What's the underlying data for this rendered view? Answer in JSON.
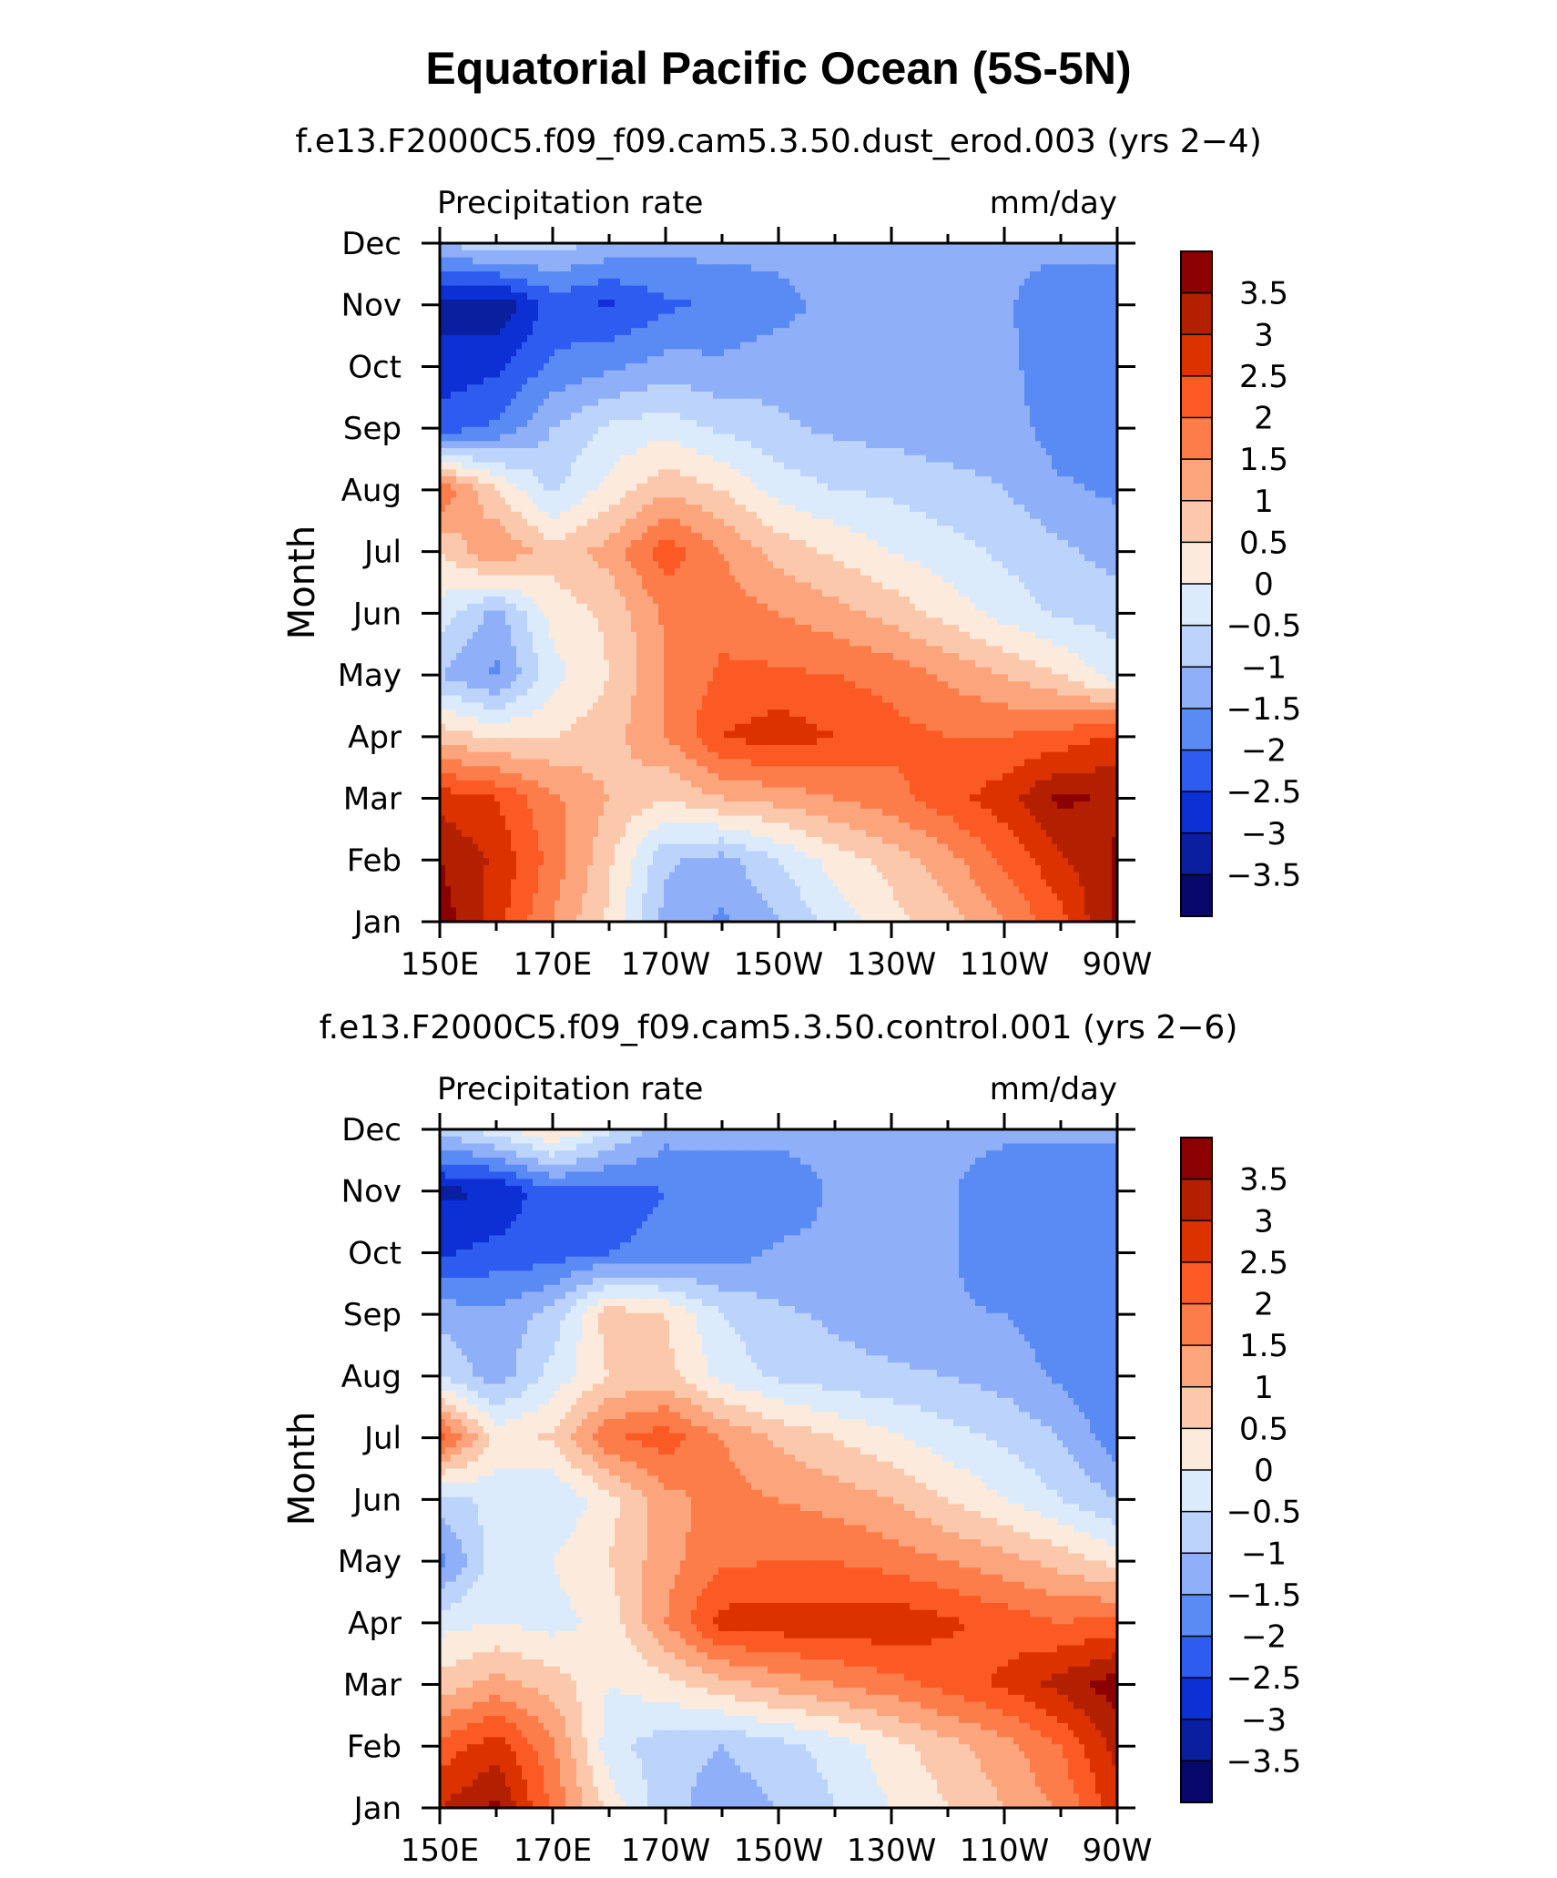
{
  "title": "Equatorial Pacific Ocean (5S-5N)",
  "chart_data": [
    {
      "type": "heatmap",
      "subtitle": "f.e13.F2000C5.f09_f09.cam5.3.50.dust_erod.003 (yrs 2−4)",
      "left_label": "Precipitation  rate",
      "right_label": "mm/day",
      "ylabel": "Month",
      "xlabel": "",
      "x_tick_labels": [
        "150E",
        "170E",
        "170W",
        "150W",
        "130W",
        "110W",
        "90W"
      ],
      "y_tick_labels": [
        "Jan",
        "Feb",
        "Mar",
        "Apr",
        "May",
        "Jun",
        "Jul",
        "Aug",
        "Sep",
        "Oct",
        "Nov",
        "Dec"
      ],
      "x": [
        150,
        160,
        170,
        180,
        190,
        200,
        210,
        220,
        230,
        240,
        250,
        260,
        270
      ],
      "y": [
        "Jan",
        "Feb",
        "Mar",
        "Apr",
        "May",
        "Jun",
        "Jul",
        "Aug",
        "Sep",
        "Oct",
        "Nov",
        "Dec"
      ],
      "xlim": [
        150,
        270
      ],
      "colorbar_labels": [
        "3.5",
        "3",
        "2.5",
        "2",
        "1.5",
        "1",
        "0.5",
        "0",
        "−0.5",
        "−1",
        "−1.5",
        "−2",
        "−2.5",
        "−3",
        "−3.5"
      ],
      "levels": [
        3.5,
        3,
        2.5,
        2,
        1.5,
        1,
        0.5,
        0,
        -0.5,
        -1,
        -1.5,
        -2,
        -2.5,
        -3,
        -3.5
      ],
      "colors": [
        "#8b0000",
        "#b22000",
        "#dc3200",
        "#fc5a24",
        "#fc7d4a",
        "#fca47c",
        "#fcc8ac",
        "#fcebdc",
        "#dcebfc",
        "#bcd4fc",
        "#8fb0f8",
        "#5a8af4",
        "#2e5cf0",
        "#0c30d4",
        "#0a1ea0",
        "#08086c"
      ],
      "values": [
        [
          3.8,
          2.7,
          1.5,
          0.4,
          -1.2,
          -1.6,
          -1.0,
          -0.3,
          0.3,
          0.8,
          1.5,
          2.3,
          3.7
        ],
        [
          3.5,
          2.9,
          1.8,
          0.6,
          -0.9,
          -1.2,
          -0.5,
          0.2,
          0.7,
          1.3,
          2.1,
          2.9,
          3.6
        ],
        [
          2.8,
          2.5,
          1.6,
          1.0,
          0.5,
          1.0,
          1.2,
          1.5,
          1.8,
          2.3,
          2.8,
          3.6,
          3.4
        ],
        [
          0.8,
          0.4,
          0.5,
          0.8,
          1.5,
          2.5,
          2.8,
          2.5,
          2.2,
          2.0,
          2.0,
          2.2,
          2.6
        ],
        [
          -1.0,
          -1.6,
          -0.2,
          0.5,
          1.5,
          2.1,
          2.1,
          2.0,
          1.8,
          1.4,
          1.0,
          0.5,
          -0.3
        ],
        [
          -0.2,
          -1.2,
          0.2,
          0.6,
          1.6,
          1.8,
          1.5,
          1.2,
          0.8,
          0.3,
          -0.2,
          -0.6,
          -0.7
        ],
        [
          0.5,
          1.5,
          0.7,
          1.2,
          2.3,
          1.5,
          0.8,
          0.4,
          0.0,
          -0.3,
          -0.6,
          -0.9,
          -1.2
        ],
        [
          2.0,
          0.5,
          -0.6,
          0.2,
          0.9,
          0.5,
          -0.2,
          -0.5,
          -0.6,
          -0.8,
          -1.0,
          -1.4,
          -1.6
        ],
        [
          -2.3,
          -1.9,
          -1.0,
          -0.4,
          -0.2,
          -0.6,
          -0.9,
          -1.1,
          -1.2,
          -1.3,
          -1.2,
          -1.8,
          -1.8
        ],
        [
          -2.8,
          -2.6,
          -1.9,
          -1.6,
          -1.3,
          -1.4,
          -1.2,
          -1.3,
          -1.3,
          -1.4,
          -1.3,
          -2.0,
          -1.8
        ],
        [
          -3.2,
          -3.4,
          -2.3,
          -2.6,
          -2.1,
          -1.9,
          -1.7,
          -1.3,
          -1.3,
          -1.4,
          -1.4,
          -2.0,
          -1.8
        ],
        [
          -1.0,
          -0.6,
          -0.8,
          -1.1,
          -1.3,
          -1.3,
          -1.3,
          -1.3,
          -1.3,
          -1.3,
          -1.3,
          -1.3,
          -1.3
        ]
      ]
    },
    {
      "type": "heatmap",
      "subtitle": "f.e13.F2000C5.f09_f09.cam5.3.50.control.001 (yrs 2−6)",
      "left_label": "Precipitation  rate",
      "right_label": "mm/day",
      "ylabel": "Month",
      "xlabel": "",
      "x_tick_labels": [
        "150E",
        "170E",
        "170W",
        "150W",
        "130W",
        "110W",
        "90W"
      ],
      "y_tick_labels": [
        "Jan",
        "Feb",
        "Mar",
        "Apr",
        "May",
        "Jun",
        "Jul",
        "Aug",
        "Sep",
        "Oct",
        "Nov",
        "Dec"
      ],
      "x": [
        150,
        160,
        170,
        180,
        190,
        200,
        210,
        220,
        230,
        240,
        250,
        260,
        270
      ],
      "y": [
        "Jan",
        "Feb",
        "Mar",
        "Apr",
        "May",
        "Jun",
        "Jul",
        "Aug",
        "Sep",
        "Oct",
        "Nov",
        "Dec"
      ],
      "xlim": [
        150,
        270
      ],
      "colorbar_labels": [
        "3.5",
        "3",
        "2.5",
        "2",
        "1.5",
        "1",
        "0.5",
        "0",
        "−0.5",
        "−1",
        "−1.5",
        "−2",
        "−2.5",
        "−3",
        "−3.5"
      ],
      "levels": [
        3.5,
        3,
        2.5,
        2,
        1.5,
        1,
        0.5,
        0,
        -0.5,
        -1,
        -1.5,
        -2,
        -2.5,
        -3,
        -3.5
      ],
      "colors": [
        "#8b0000",
        "#b22000",
        "#dc3200",
        "#fc5a24",
        "#fc7d4a",
        "#fca47c",
        "#fcc8ac",
        "#fcebdc",
        "#dcebfc",
        "#bcd4fc",
        "#8fb0f8",
        "#5a8af4",
        "#2e5cf0",
        "#0c30d4",
        "#0a1ea0",
        "#08086c"
      ],
      "values": [
        [
          3.0,
          3.6,
          1.9,
          0.3,
          -0.8,
          -1.3,
          -1.0,
          -0.5,
          0.0,
          0.5,
          1.0,
          1.6,
          2.8
        ],
        [
          2.2,
          2.8,
          1.6,
          -0.3,
          -0.8,
          -1.0,
          -0.7,
          -0.3,
          0.3,
          0.8,
          1.3,
          2.0,
          3.2
        ],
        [
          0.7,
          1.2,
          0.8,
          0.0,
          0.3,
          0.8,
          1.2,
          1.5,
          1.8,
          2.2,
          2.6,
          3.2,
          3.8
        ],
        [
          -0.2,
          0.0,
          -0.2,
          0.2,
          1.5,
          2.7,
          2.8,
          2.8,
          2.9,
          2.6,
          2.3,
          2.0,
          2.2
        ],
        [
          -1.7,
          -0.2,
          0.0,
          0.5,
          1.3,
          1.9,
          2.0,
          2.0,
          1.8,
          1.5,
          1.2,
          0.8,
          0.3
        ],
        [
          -0.8,
          -0.3,
          -0.5,
          0.3,
          1.3,
          1.7,
          1.5,
          1.3,
          1.0,
          0.5,
          0.0,
          -0.5,
          -1.0
        ],
        [
          2.3,
          0.3,
          0.6,
          1.9,
          2.3,
          1.5,
          0.9,
          0.5,
          0.1,
          -0.3,
          -0.6,
          -1.0,
          -1.8
        ],
        [
          -0.5,
          -1.3,
          -0.3,
          0.5,
          0.7,
          -0.2,
          -0.6,
          -0.8,
          -0.9,
          -1.0,
          -1.2,
          -1.6,
          -2.0
        ],
        [
          -1.2,
          -1.4,
          -0.8,
          0.8,
          0.5,
          -0.5,
          -0.9,
          -1.1,
          -1.3,
          -1.4,
          -1.5,
          -1.8,
          -2.0
        ],
        [
          -2.6,
          -2.3,
          -2.3,
          -2.0,
          -1.9,
          -1.8,
          -1.4,
          -1.4,
          -1.4,
          -1.4,
          -2.0,
          -2.0,
          -2.0
        ],
        [
          -3.1,
          -3.0,
          -2.1,
          -2.2,
          -2.0,
          -1.9,
          -1.9,
          -1.4,
          -1.4,
          -1.4,
          -2.0,
          -2.0,
          -2.0
        ],
        [
          -0.8,
          -0.2,
          0.6,
          -0.4,
          -1.3,
          -1.3,
          -1.3,
          -1.3,
          -1.3,
          -1.3,
          -1.3,
          -1.3,
          -1.3
        ]
      ]
    }
  ]
}
